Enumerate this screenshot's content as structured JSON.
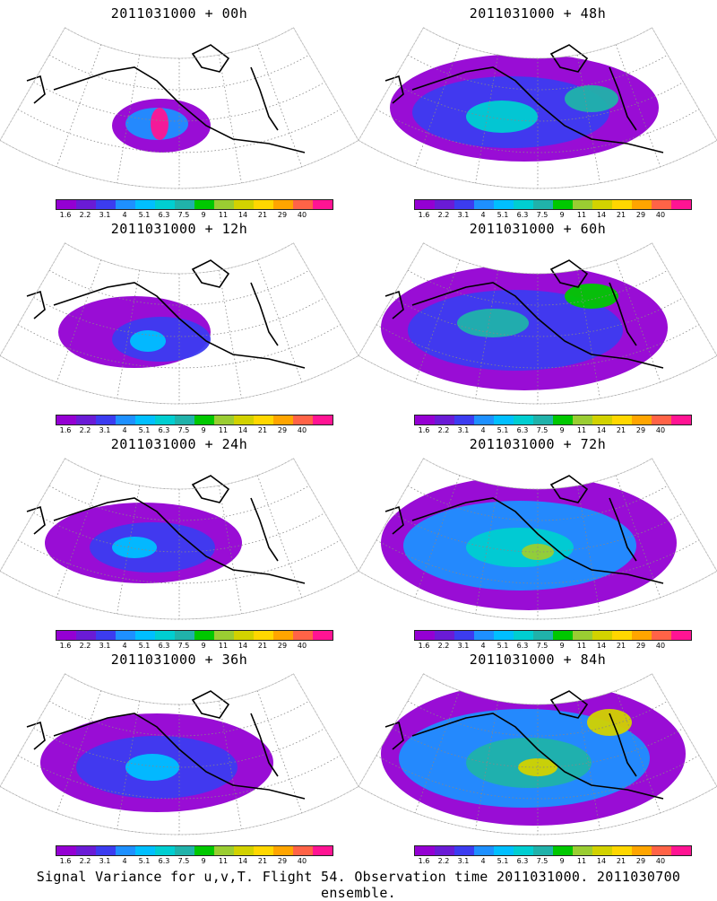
{
  "panels": [
    {
      "title": "2011031000 + 00h"
    },
    {
      "title": "2011031000 + 48h"
    },
    {
      "title": "2011031000 + 12h"
    },
    {
      "title": "2011031000 + 60h"
    },
    {
      "title": "2011031000 + 24h"
    },
    {
      "title": "2011031000 + 72h"
    },
    {
      "title": "2011031000 + 36h"
    },
    {
      "title": "2011031000 + 84h"
    }
  ],
  "colorbar": {
    "labels": [
      "1.6",
      "2.2",
      "3.1",
      "4",
      "5.1",
      "6.3",
      "7.5",
      "9",
      "11",
      "14",
      "21",
      "29",
      "40"
    ],
    "colors": [
      "#9400d3",
      "#6a1bd6",
      "#3c3cf0",
      "#1e90ff",
      "#00bfff",
      "#00ced1",
      "#20b2aa",
      "#00c800",
      "#9acd32",
      "#d2d200",
      "#ffd700",
      "#ffa500",
      "#ff6347",
      "#ff1493"
    ]
  },
  "footer": {
    "caption": "Signal Variance for u,v,T. Flight 54. Observation time 2011031000. 2011030700 ensemble."
  }
}
